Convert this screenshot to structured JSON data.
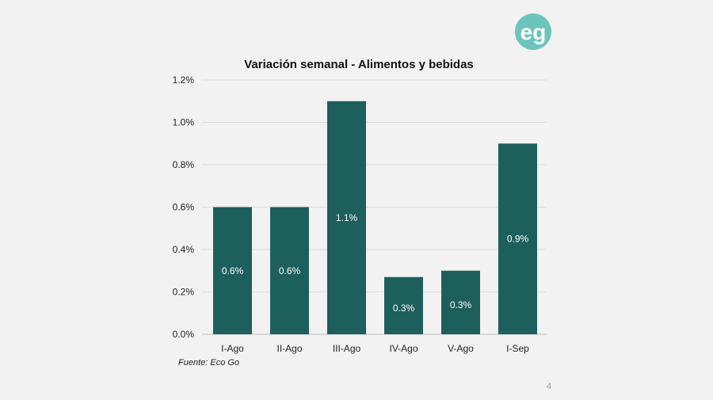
{
  "logo": {
    "text": "eg",
    "color": "#6cc5bd"
  },
  "slide_number": "4",
  "source": "Fuente: Eco Go",
  "chart_data": {
    "type": "bar",
    "title": "Variación semanal - Alimentos y bebidas",
    "categories": [
      "I-Ago",
      "II-Ago",
      "III-Ago",
      "IV-Ago",
      "V-Ago",
      "I-Sep"
    ],
    "values": [
      0.6,
      0.6,
      1.1,
      0.27,
      0.3,
      0.9
    ],
    "data_labels": [
      "0.6%",
      "0.6%",
      "1.1%",
      "0.3%",
      "0.3%",
      "0.9%"
    ],
    "yticks": [
      "0.0%",
      "0.2%",
      "0.4%",
      "0.6%",
      "0.8%",
      "1.0%",
      "1.2%"
    ],
    "ytick_values": [
      0,
      0.2,
      0.4,
      0.6,
      0.8,
      1.0,
      1.2
    ],
    "ylim": [
      0,
      1.2
    ],
    "grid": true,
    "bar_color": "#1d5f5c",
    "xlabel": "",
    "ylabel": ""
  }
}
